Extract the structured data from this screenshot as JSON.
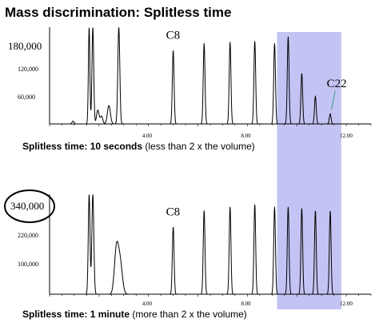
{
  "title": "Mass discrimination: Splitless time",
  "colors": {
    "highlight": "#c4c4f4",
    "trace": "#000000",
    "annotation_line": "#3c9e87"
  },
  "chart_data": [
    {
      "type": "line",
      "caption_bold": "Splitless time: 10 seconds",
      "caption_rest": " (less than 2 x the volume)",
      "y_big_label": "180,000",
      "y_small_labels": [
        "120,000",
        "60,000"
      ],
      "x_tick_labels": [
        "4.00",
        "8.00",
        "12.00"
      ],
      "xlim": [
        0,
        13.0
      ],
      "ylim": [
        0,
        210000
      ],
      "highlight_x": [
        9.2,
        11.8
      ],
      "peak_labels": [
        {
          "text": "C8",
          "x": 5.0,
          "y": 185000
        },
        {
          "text": "C22",
          "x": 11.5,
          "y": 80000
        }
      ],
      "peaks": [
        {
          "x": 1.6,
          "y": 210000,
          "w": 0.03
        },
        {
          "x": 1.75,
          "y": 210000,
          "w": 0.035
        },
        {
          "x": 1.95,
          "y": 30000,
          "w": 0.05
        },
        {
          "x": 2.1,
          "y": 17000,
          "w": 0.05
        },
        {
          "x": 2.4,
          "y": 40000,
          "w": 0.06
        },
        {
          "x": 2.8,
          "y": 210000,
          "w": 0.04
        },
        {
          "x": 5.0,
          "y": 160000,
          "w": 0.035
        },
        {
          "x": 6.25,
          "y": 175000,
          "w": 0.035
        },
        {
          "x": 7.3,
          "y": 178000,
          "w": 0.035
        },
        {
          "x": 8.3,
          "y": 180000,
          "w": 0.035
        },
        {
          "x": 9.1,
          "y": 175000,
          "w": 0.035
        },
        {
          "x": 9.65,
          "y": 190000,
          "w": 0.035
        },
        {
          "x": 10.2,
          "y": 110000,
          "w": 0.035
        },
        {
          "x": 10.75,
          "y": 60000,
          "w": 0.035
        },
        {
          "x": 11.35,
          "y": 22000,
          "w": 0.035
        }
      ],
      "baseline_bumps": [
        {
          "x": 0.95,
          "y": 6000
        }
      ]
    },
    {
      "type": "line",
      "caption_bold": "Splitless time: 1 minute",
      "caption_rest": " (more than 2 x the volume)",
      "y_big_label": "340,000",
      "y_small_labels": [
        "220,000",
        "100,000"
      ],
      "x_tick_labels": [
        "4.00",
        "8.00",
        "12.00"
      ],
      "xlim": [
        0,
        13.0
      ],
      "ylim": [
        0,
        400000
      ],
      "highlight_x": [
        9.2,
        11.8
      ],
      "peak_labels": [
        {
          "text": "C8",
          "x": 5.0,
          "y": 315000
        }
      ],
      "peaks": [
        {
          "x": 1.6,
          "y": 400000,
          "w": 0.035
        },
        {
          "x": 1.75,
          "y": 400000,
          "w": 0.04
        },
        {
          "x": 2.7,
          "y": 170000,
          "w": 0.08
        },
        {
          "x": 2.85,
          "y": 130000,
          "w": 0.09
        },
        {
          "x": 5.0,
          "y": 270000,
          "w": 0.035
        },
        {
          "x": 6.25,
          "y": 335000,
          "w": 0.035
        },
        {
          "x": 7.3,
          "y": 350000,
          "w": 0.035
        },
        {
          "x": 8.3,
          "y": 360000,
          "w": 0.035
        },
        {
          "x": 9.1,
          "y": 350000,
          "w": 0.035
        },
        {
          "x": 9.65,
          "y": 350000,
          "w": 0.035
        },
        {
          "x": 10.2,
          "y": 345000,
          "w": 0.035
        },
        {
          "x": 10.75,
          "y": 335000,
          "w": 0.035
        },
        {
          "x": 11.35,
          "y": 335000,
          "w": 0.035
        }
      ],
      "baseline_bumps": []
    }
  ]
}
